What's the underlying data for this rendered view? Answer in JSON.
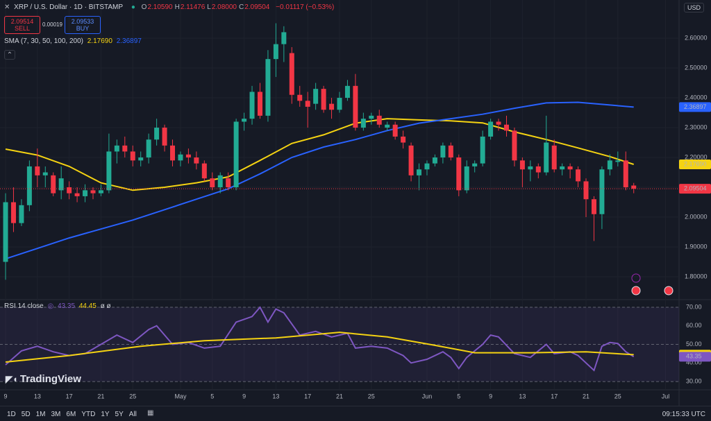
{
  "header": {
    "symbol": "XRP / U.S. Dollar · 1D · BITSTAMP",
    "ohlc": [
      {
        "key": "O",
        "value": "2.10590"
      },
      {
        "key": "H",
        "value": "2.11476"
      },
      {
        "key": "L",
        "value": "2.08000"
      },
      {
        "key": "C",
        "value": "2.09504"
      }
    ],
    "change": "−0.01117 (−0.53%)",
    "sell": {
      "price": "2.09514",
      "label": "SELL"
    },
    "spread": "0.00019",
    "buy": {
      "price": "2.09533",
      "label": "BUY"
    },
    "sma": {
      "label": "SMA (7, 30, 50, 100, 200)",
      "values": [
        "2.17690",
        "2.36897"
      ]
    },
    "rsi": {
      "label": "RSI 14 close",
      "values": [
        "43.35",
        "44.45"
      ],
      "extra": "ø ø"
    },
    "currency": "USD"
  },
  "chart_data": [
    {
      "type": "candlestick",
      "up_color": "#22ab94",
      "down_color": "#f23645",
      "open": [
        1.85,
        2.05,
        1.98,
        2.04,
        2.17,
        2.14,
        2.14,
        2.09,
        2.1,
        2.08,
        2.07,
        2.09,
        2.08,
        2.09,
        2.22,
        2.24,
        2.22,
        2.19,
        2.2,
        2.26,
        2.3,
        2.24,
        2.19,
        2.21,
        2.2,
        2.18,
        2.13,
        2.1,
        2.13,
        2.1,
        2.32,
        2.33,
        2.42,
        2.34,
        2.53,
        2.58,
        2.55,
        2.41,
        2.39,
        2.38,
        2.43,
        2.38,
        2.36,
        2.4,
        2.44,
        2.3,
        2.33,
        2.34,
        2.3,
        2.31,
        2.27,
        2.24,
        2.14,
        2.16,
        2.18,
        2.2,
        2.24,
        2.2,
        2.09,
        2.17,
        2.18,
        2.27,
        2.32,
        2.31,
        2.29,
        2.19,
        2.16,
        2.17,
        2.15,
        2.24,
        2.16,
        2.17,
        2.16,
        2.12,
        2.06,
        2.01,
        2.16,
        2.185,
        2.19,
        2.1059
      ],
      "high": [
        2.08,
        2.1,
        2.06,
        2.19,
        2.23,
        2.17,
        2.15,
        2.17,
        2.12,
        2.1,
        2.11,
        2.1,
        2.11,
        2.28,
        2.26,
        2.27,
        2.24,
        2.22,
        2.28,
        2.33,
        2.31,
        2.26,
        2.22,
        2.23,
        2.22,
        2.19,
        2.15,
        2.15,
        2.15,
        2.33,
        2.35,
        2.44,
        2.45,
        2.56,
        2.65,
        2.64,
        2.57,
        2.44,
        2.42,
        2.45,
        2.44,
        2.4,
        2.42,
        2.46,
        2.48,
        2.35,
        2.35,
        2.36,
        2.32,
        2.32,
        2.29,
        2.25,
        2.18,
        2.19,
        2.21,
        2.25,
        2.25,
        2.21,
        2.19,
        2.19,
        2.29,
        2.33,
        2.33,
        2.34,
        2.3,
        2.2,
        2.19,
        2.18,
        2.34,
        2.26,
        2.18,
        2.18,
        2.17,
        2.13,
        2.07,
        2.17,
        2.21,
        2.22,
        2.22,
        2.11476
      ],
      "low": [
        1.79,
        1.95,
        1.97,
        2.02,
        2.1,
        2.1,
        2.07,
        2.06,
        2.06,
        2.05,
        2.05,
        2.06,
        2.07,
        2.08,
        2.18,
        2.2,
        2.17,
        2.17,
        2.18,
        2.24,
        2.22,
        2.17,
        2.17,
        2.18,
        2.16,
        2.12,
        2.09,
        2.08,
        2.09,
        2.09,
        2.29,
        2.31,
        2.33,
        2.32,
        2.47,
        2.52,
        2.38,
        2.37,
        2.3,
        2.36,
        2.35,
        2.33,
        2.35,
        2.39,
        2.29,
        2.29,
        2.31,
        2.3,
        2.29,
        2.26,
        2.23,
        2.12,
        2.09,
        2.14,
        2.17,
        2.18,
        2.19,
        2.07,
        2.08,
        2.15,
        2.17,
        2.26,
        2.29,
        2.27,
        2.17,
        2.1,
        2.12,
        2.13,
        2.14,
        2.15,
        2.14,
        2.13,
        2.1,
        2.0,
        1.92,
        1.96,
        2.14,
        2.17,
        2.09,
        2.08
      ],
      "close": [
        2.05,
        1.98,
        2.04,
        2.17,
        2.14,
        2.15,
        2.08,
        2.13,
        2.08,
        2.07,
        2.09,
        2.08,
        2.09,
        2.22,
        2.24,
        2.22,
        2.19,
        2.2,
        2.26,
        2.3,
        2.24,
        2.19,
        2.21,
        2.2,
        2.18,
        2.13,
        2.1,
        2.14,
        2.1,
        2.32,
        2.33,
        2.42,
        2.34,
        2.53,
        2.58,
        2.62,
        2.41,
        2.39,
        2.37,
        2.43,
        2.36,
        2.36,
        2.4,
        2.44,
        2.3,
        2.33,
        2.34,
        2.31,
        2.31,
        2.27,
        2.25,
        2.14,
        2.16,
        2.18,
        2.2,
        2.24,
        2.2,
        2.09,
        2.17,
        2.18,
        2.27,
        2.32,
        2.31,
        2.29,
        2.19,
        2.16,
        2.17,
        2.15,
        2.25,
        2.16,
        2.17,
        2.16,
        2.12,
        2.06,
        2.01,
        2.16,
        2.19,
        2.19,
        2.1,
        2.09504
      ],
      "series": [
        {
          "color": "#f5d312",
          "x": [
            0,
            4,
            8,
            12,
            16,
            20,
            24,
            28,
            32,
            36,
            40,
            44,
            48,
            52,
            56,
            60,
            64,
            68,
            72,
            76,
            79
          ],
          "values": [
            2.228,
            2.208,
            2.17,
            2.115,
            2.09,
            2.1,
            2.115,
            2.135,
            2.19,
            2.247,
            2.276,
            2.315,
            2.33,
            2.326,
            2.323,
            2.316,
            2.286,
            2.26,
            2.232,
            2.203,
            2.1769
          ]
        },
        {
          "color": "#2962ff",
          "x": [
            0,
            4,
            8,
            12,
            16,
            20,
            24,
            28,
            32,
            36,
            40,
            44,
            48,
            52,
            56,
            60,
            64,
            68,
            72,
            76,
            79
          ],
          "values": [
            1.86,
            1.895,
            1.93,
            1.96,
            1.99,
            2.025,
            2.06,
            2.095,
            2.145,
            2.2,
            2.235,
            2.26,
            2.29,
            2.315,
            2.33,
            2.345,
            2.365,
            2.383,
            2.385,
            2.376,
            2.36897
          ]
        }
      ],
      "last_price_color": "#f23645",
      "xlim": [
        -0.7,
        84.7
      ],
      "ylim": [
        1.728,
        2.728
      ],
      "yticks": [
        {
          "value": 1.8,
          "label": "1.80000"
        },
        {
          "value": 1.9,
          "label": "1.90000"
        },
        {
          "value": 2.0,
          "label": "2.00000"
        },
        {
          "value": 2.1,
          "label": "2.10000"
        },
        {
          "value": 2.2,
          "label": "2.20000"
        },
        {
          "value": 2.3,
          "label": "2.30000"
        },
        {
          "value": 2.4,
          "label": "2.40000"
        },
        {
          "value": 2.5,
          "label": "2.50000"
        },
        {
          "value": 2.6,
          "label": "2.60000"
        }
      ],
      "xticks": [
        {
          "value": 0,
          "label": "9"
        },
        {
          "value": 4,
          "label": "13"
        },
        {
          "value": 8,
          "label": "17"
        },
        {
          "value": 12,
          "label": "21"
        },
        {
          "value": 16,
          "label": "25"
        },
        {
          "value": 22,
          "label": "May"
        },
        {
          "value": 26,
          "label": "5"
        },
        {
          "value": 30,
          "label": "9"
        },
        {
          "value": 34,
          "label": "13"
        },
        {
          "value": 38,
          "label": "17"
        },
        {
          "value": 42,
          "label": "21"
        },
        {
          "value": 46,
          "label": "25"
        },
        {
          "value": 53,
          "label": "Jun"
        },
        {
          "value": 57,
          "label": "5"
        },
        {
          "value": 61,
          "label": "9"
        },
        {
          "value": 65,
          "label": "13"
        },
        {
          "value": 69,
          "label": "17"
        },
        {
          "value": 73,
          "label": "21"
        },
        {
          "value": 77,
          "label": "25"
        },
        {
          "value": 83,
          "label": "Jul"
        }
      ],
      "grid": true
    },
    {
      "type": "line",
      "series": [
        {
          "color": "#7e57c2",
          "x": [
            0,
            2,
            4,
            6,
            8,
            10,
            12,
            14,
            16,
            18,
            19,
            21,
            23,
            25,
            27,
            29,
            31,
            32,
            33,
            34,
            35,
            37,
            39,
            41,
            43,
            44,
            46,
            48,
            50,
            51,
            53,
            55,
            56,
            57,
            58,
            60,
            61,
            62,
            64,
            66,
            68,
            69,
            71,
            72,
            73,
            74,
            75,
            76,
            77,
            78,
            79
          ],
          "values": [
            39,
            46.5,
            49,
            46,
            44,
            45,
            50,
            55,
            51,
            58,
            60,
            50,
            51,
            48,
            49,
            62,
            65,
            70,
            62,
            69,
            67,
            55,
            57,
            54,
            56,
            48,
            49,
            48,
            44,
            40,
            42,
            46,
            43,
            37,
            43,
            50,
            55,
            54,
            45,
            43,
            50,
            45,
            46,
            44,
            40,
            36,
            49,
            51,
            50.5,
            46,
            43.35
          ]
        },
        {
          "color": "#f5d312",
          "x": [
            0,
            8,
            17,
            25,
            34,
            42,
            48,
            54,
            59,
            66,
            73,
            79
          ],
          "values": [
            40.5,
            44,
            49,
            52,
            53.5,
            56.5,
            54,
            49.5,
            45.5,
            45.5,
            46,
            44.45
          ]
        }
      ],
      "xlim": [
        -0.7,
        84.7
      ],
      "ylim": [
        26.3,
        72.6
      ],
      "yticks": [
        {
          "value": 30,
          "label": "30.00"
        },
        {
          "value": 40,
          "label": "40.00"
        },
        {
          "value": 50,
          "label": "50.00"
        },
        {
          "value": 60,
          "label": "60.00"
        },
        {
          "value": 70,
          "label": "70.00"
        }
      ],
      "dashed_ticks": [
        30,
        50,
        70
      ]
    }
  ],
  "brand": "TradingView",
  "toolbar": {
    "ranges": [
      "1D",
      "5D",
      "1M",
      "3M",
      "6M",
      "YTD",
      "1Y",
      "5Y",
      "All"
    ],
    "clock": "09:15:33 UTC"
  }
}
